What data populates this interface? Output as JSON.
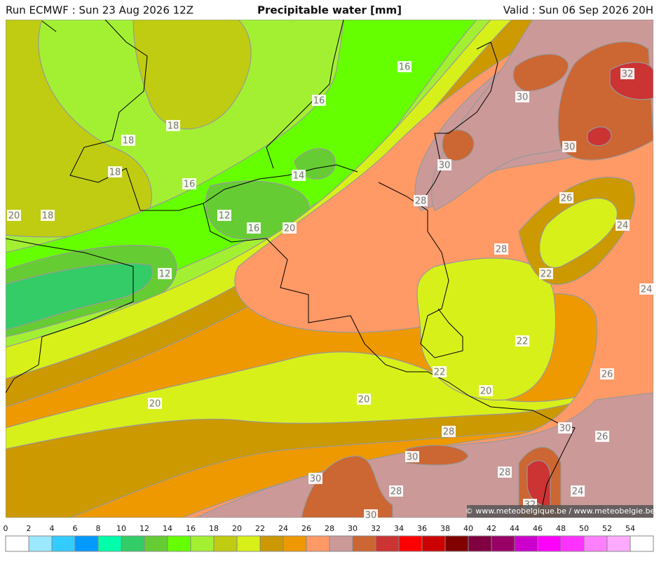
{
  "header": {
    "run": "Run ECMWF : Sun 23 Aug 2026 12Z",
    "title": "Precipitable water [mm]",
    "valid": "Valid : Sun 06 Sep 2026 20H"
  },
  "map": {
    "contour_labels": [
      16,
      16,
      18,
      18,
      18,
      16,
      14,
      20,
      18,
      12,
      16,
      20,
      12,
      30,
      32,
      30,
      30,
      28,
      26,
      24,
      28,
      22,
      24,
      22,
      26,
      22,
      20,
      20,
      20,
      30,
      28,
      26,
      30,
      28,
      30,
      28,
      24,
      30,
      32
    ],
    "copyright": "© www.meteobelgique.be / www.meteobelgie.be"
  },
  "colorbar": {
    "ticks": [
      0,
      2,
      4,
      6,
      8,
      10,
      12,
      14,
      16,
      18,
      20,
      22,
      24,
      26,
      28,
      30,
      32,
      34,
      36,
      38,
      40,
      42,
      44,
      46,
      48,
      50,
      52,
      54
    ],
    "colors": [
      "#ffffff",
      "#9be8ff",
      "#33ccff",
      "#0099ff",
      "#00ffaa",
      "#33cc66",
      "#66cc33",
      "#66ff00",
      "#a3f033",
      "#bfcc11",
      "#d8f01a",
      "#cc9900",
      "#ee9900",
      "#ff9966",
      "#cc9999",
      "#cc6633",
      "#cc3333",
      "#ff0000",
      "#cc0000",
      "#800000",
      "#800040",
      "#990066",
      "#cc00cc",
      "#ff00ff",
      "#ff33ff",
      "#ff80ff",
      "#ffaaff",
      "#ffffff"
    ]
  }
}
